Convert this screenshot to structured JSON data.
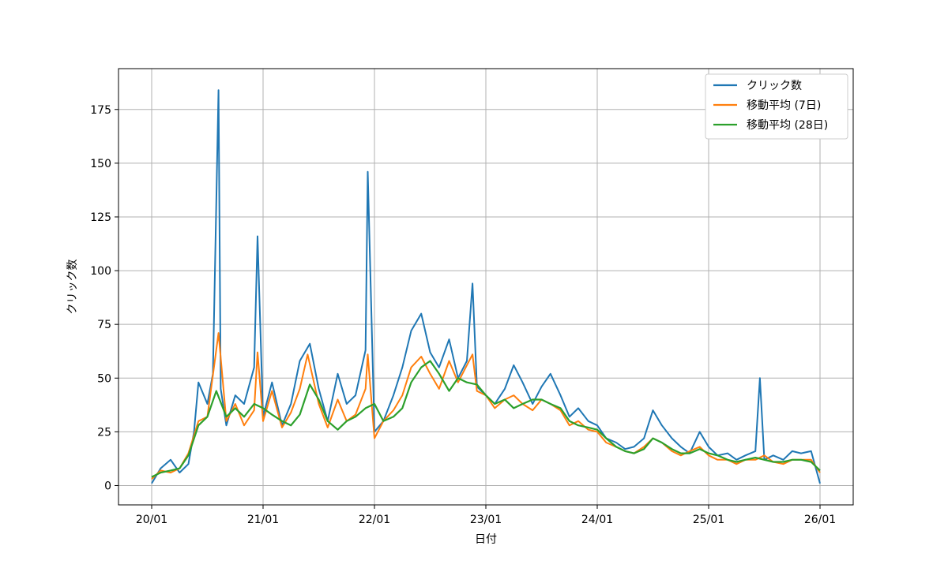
{
  "chart_data": {
    "type": "line",
    "title": "",
    "xlabel": "日付",
    "ylabel": "クリック数",
    "x_ticks": [
      "20/01",
      "21/01",
      "22/01",
      "23/01",
      "24/01",
      "25/01",
      "26/01"
    ],
    "x_range_years": [
      2020.0,
      2026.0
    ],
    "y_ticks": [
      0,
      25,
      50,
      75,
      100,
      125,
      150,
      175
    ],
    "ylim": [
      -9,
      194
    ],
    "grid": true,
    "legend_position": "top-right",
    "series": [
      {
        "name": "クリック数",
        "color": "#1f77b4",
        "x": [
          2020.0,
          2020.08,
          2020.17,
          2020.25,
          2020.33,
          2020.38,
          2020.42,
          2020.5,
          2020.55,
          2020.6,
          2020.62,
          2020.67,
          2020.75,
          2020.83,
          2020.92,
          2020.95,
          2021.0,
          2021.08,
          2021.17,
          2021.25,
          2021.33,
          2021.42,
          2021.5,
          2021.58,
          2021.67,
          2021.75,
          2021.83,
          2021.92,
          2021.94,
          2022.0,
          2022.08,
          2022.17,
          2022.25,
          2022.33,
          2022.42,
          2022.5,
          2022.58,
          2022.67,
          2022.75,
          2022.83,
          2022.88,
          2022.92,
          2023.0,
          2023.08,
          2023.17,
          2023.25,
          2023.33,
          2023.42,
          2023.5,
          2023.58,
          2023.67,
          2023.75,
          2023.83,
          2023.92,
          2024.0,
          2024.08,
          2024.17,
          2024.25,
          2024.33,
          2024.42,
          2024.5,
          2024.58,
          2024.67,
          2024.75,
          2024.83,
          2024.92,
          2025.0,
          2025.08,
          2025.17,
          2025.25,
          2025.33,
          2025.42,
          2025.46,
          2025.5,
          2025.58,
          2025.67,
          2025.75,
          2025.83,
          2025.92,
          2026.0
        ],
        "values": [
          1,
          8,
          12,
          6,
          10,
          25,
          48,
          38,
          52,
          184,
          45,
          28,
          42,
          38,
          55,
          116,
          32,
          48,
          28,
          38,
          58,
          66,
          45,
          30,
          52,
          38,
          42,
          63,
          146,
          25,
          30,
          42,
          55,
          72,
          80,
          62,
          55,
          68,
          50,
          58,
          94,
          46,
          42,
          38,
          45,
          56,
          48,
          38,
          46,
          52,
          42,
          32,
          36,
          30,
          28,
          22,
          20,
          17,
          18,
          22,
          35,
          28,
          22,
          18,
          15,
          25,
          18,
          14,
          15,
          12,
          14,
          16,
          50,
          12,
          14,
          12,
          16,
          15,
          16,
          1
        ]
      },
      {
        "name": "移動平均 (7日)",
        "color": "#ff7f0e",
        "x": [
          2020.0,
          2020.08,
          2020.17,
          2020.25,
          2020.33,
          2020.42,
          2020.5,
          2020.6,
          2020.67,
          2020.75,
          2020.83,
          2020.92,
          2020.95,
          2021.0,
          2021.08,
          2021.17,
          2021.25,
          2021.33,
          2021.4,
          2021.5,
          2021.58,
          2021.67,
          2021.75,
          2021.83,
          2021.92,
          2021.94,
          2022.0,
          2022.08,
          2022.17,
          2022.25,
          2022.33,
          2022.42,
          2022.5,
          2022.58,
          2022.67,
          2022.75,
          2022.83,
          2022.88,
          2022.92,
          2023.0,
          2023.08,
          2023.17,
          2023.25,
          2023.33,
          2023.42,
          2023.5,
          2023.58,
          2023.67,
          2023.75,
          2023.83,
          2023.92,
          2024.0,
          2024.08,
          2024.17,
          2024.25,
          2024.33,
          2024.42,
          2024.5,
          2024.58,
          2024.67,
          2024.75,
          2024.83,
          2024.92,
          2025.0,
          2025.08,
          2025.17,
          2025.25,
          2025.33,
          2025.42,
          2025.5,
          2025.58,
          2025.67,
          2025.75,
          2025.83,
          2025.92,
          2026.0
        ],
        "values": [
          3,
          7,
          6,
          8,
          15,
          30,
          32,
          71,
          30,
          38,
          28,
          35,
          62,
          30,
          44,
          27,
          34,
          45,
          61,
          38,
          27,
          40,
          30,
          33,
          45,
          61,
          22,
          30,
          35,
          42,
          55,
          60,
          52,
          45,
          58,
          48,
          56,
          61,
          44,
          42,
          36,
          40,
          42,
          38,
          35,
          40,
          38,
          35,
          28,
          30,
          26,
          25,
          20,
          18,
          16,
          15,
          18,
          22,
          20,
          16,
          14,
          16,
          18,
          14,
          12,
          12,
          10,
          12,
          12,
          14,
          11,
          10,
          12,
          12,
          12,
          6
        ]
      },
      {
        "name": "移動平均 (28日)",
        "color": "#2ca02c",
        "x": [
          2020.0,
          2020.08,
          2020.17,
          2020.25,
          2020.33,
          2020.42,
          2020.5,
          2020.58,
          2020.67,
          2020.75,
          2020.83,
          2020.92,
          2021.0,
          2021.08,
          2021.17,
          2021.25,
          2021.33,
          2021.42,
          2021.5,
          2021.58,
          2021.67,
          2021.75,
          2021.83,
          2021.92,
          2022.0,
          2022.08,
          2022.17,
          2022.25,
          2022.33,
          2022.42,
          2022.5,
          2022.58,
          2022.67,
          2022.75,
          2022.83,
          2022.92,
          2023.0,
          2023.08,
          2023.17,
          2023.25,
          2023.33,
          2023.42,
          2023.5,
          2023.58,
          2023.67,
          2023.75,
          2023.83,
          2023.92,
          2024.0,
          2024.08,
          2024.17,
          2024.25,
          2024.33,
          2024.42,
          2024.5,
          2024.58,
          2024.67,
          2024.75,
          2024.83,
          2024.92,
          2025.0,
          2025.08,
          2025.17,
          2025.25,
          2025.33,
          2025.42,
          2025.5,
          2025.58,
          2025.67,
          2025.75,
          2025.83,
          2025.92,
          2026.0
        ],
        "values": [
          4,
          6,
          7,
          8,
          14,
          28,
          32,
          44,
          32,
          36,
          32,
          38,
          36,
          33,
          30,
          28,
          33,
          47,
          40,
          30,
          26,
          30,
          32,
          36,
          38,
          30,
          32,
          36,
          48,
          55,
          58,
          52,
          44,
          50,
          48,
          47,
          42,
          38,
          40,
          36,
          38,
          40,
          40,
          38,
          36,
          30,
          28,
          27,
          26,
          22,
          18,
          16,
          15,
          17,
          22,
          20,
          17,
          15,
          15,
          17,
          15,
          14,
          12,
          11,
          12,
          13,
          12,
          11,
          11,
          12,
          12,
          11,
          7
        ]
      }
    ]
  }
}
